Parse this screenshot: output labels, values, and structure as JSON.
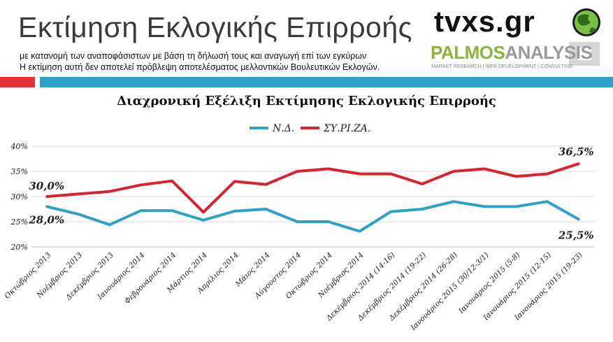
{
  "header": {
    "title": "Εκτίμηση Εκλογικής Επιρροής",
    "subtitle_line1": "με κατανομή των αναποφάσιστων με βάση τη δήλωσή τους και αναγωγή επί των εγκύρων",
    "subtitle_line2": "Η εκτίμηση αυτή δεν αποτελεί πρόβλεψη αποτελέσματος μελλοντικών Βουλευτικών Εκλογών."
  },
  "logos": {
    "tvxs": "tvxs.gr",
    "palmos_a": "PALMOS",
    "palmos_b": "ANALYSIS",
    "palmos_tagline": "MARKET RESEARCH | WEB DEVELOPMENT | CONSULTING"
  },
  "colors": {
    "nd": "#2ea2c6",
    "syriza": "#d9232e",
    "accent_red": "#e5323a",
    "accent_blue": "#2ea2c6"
  },
  "chart_data": {
    "type": "line",
    "title": "Διαχρονική Εξέλιξη Εκτίμησης Εκλογικής Επιρροής",
    "categories": [
      "Οκτώβριος 2013",
      "Νοέμβριος 2013",
      "Δεκέμβριος 2013",
      "Ιανουάριος 2014",
      "Φεβρουάριος 2014",
      "Μάρτιος 2014",
      "Απρίλιος 2014",
      "Μάιος 2014",
      "Αύγουστος 2014",
      "Οκτώβριος 2014",
      "Νοέμβριος 2014",
      "Δεκέμβριος 2014 (14-16)",
      "Δεκέμβριος 2014 (19-22)",
      "Δεκέμβριος 2014 (26-28)",
      "Ιανουάριος 2015 (30/12-3/1)",
      "Ιανουάριος 2015 (5-8)",
      "Ιανουάριος 2015 (12-15)",
      "Ιανουάριος 2015 (19-23)"
    ],
    "series": [
      {
        "name": "Ν.Δ.",
        "values": [
          28.0,
          26.5,
          24.4,
          27.2,
          27.2,
          25.3,
          27.1,
          27.5,
          25.0,
          25.0,
          23.1,
          27.0,
          27.5,
          29.0,
          28.0,
          28.0,
          29.0,
          25.5
        ]
      },
      {
        "name": "ΣΥ.ΡΙ.ΖΑ.",
        "values": [
          30.0,
          30.5,
          31.0,
          32.3,
          33.1,
          26.9,
          33.0,
          32.4,
          35.0,
          35.5,
          34.5,
          34.5,
          32.5,
          35.0,
          35.5,
          34.0,
          34.5,
          36.5
        ]
      }
    ],
    "ylim": [
      20,
      40
    ],
    "yticks": [
      "20%",
      "25%",
      "30%",
      "35%",
      "40%"
    ],
    "annotations": {
      "syriza_first": "30,0%",
      "syriza_last": "36,5%",
      "nd_first": "28,0%",
      "nd_last": "25,5%"
    },
    "grid": "horizontal",
    "legend_position": "top-center"
  }
}
